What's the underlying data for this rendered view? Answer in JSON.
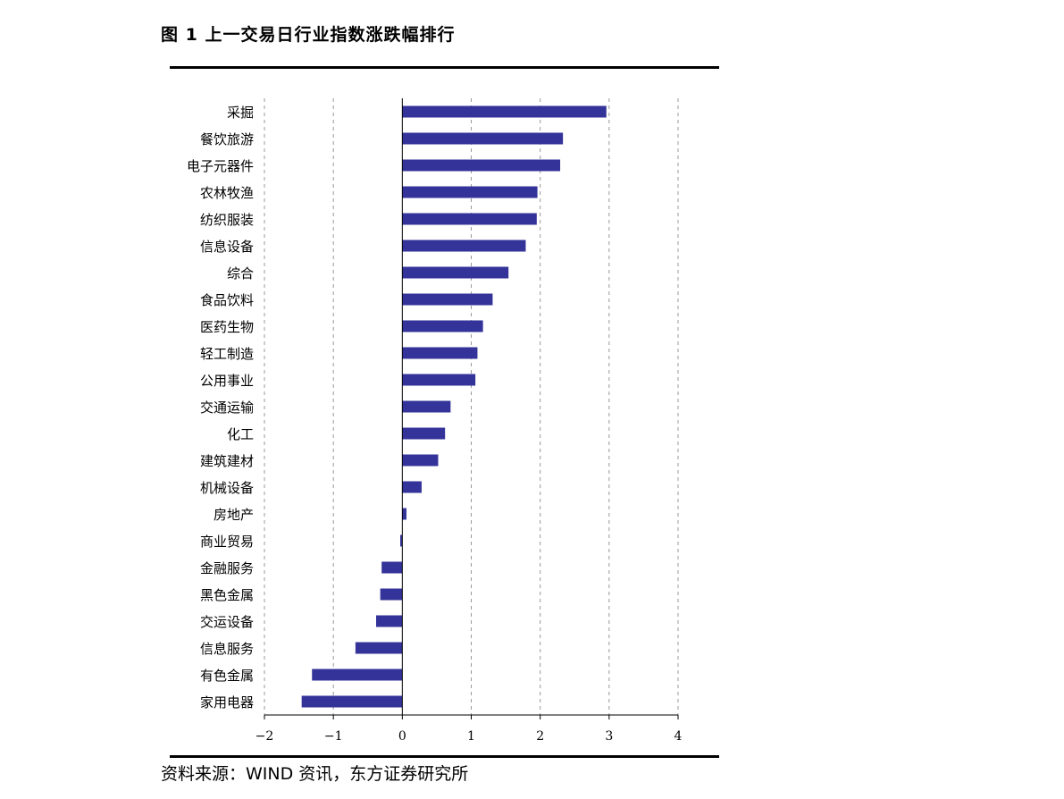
{
  "figure": {
    "title": "图 1  上一交易日行业指数涨跌幅排行",
    "source": "资料来源：WIND 资讯，东方证券研究所"
  },
  "chart_data": {
    "type": "bar",
    "orientation": "horizontal",
    "title": "",
    "xlabel": "",
    "ylabel": "",
    "xlim": [
      -2,
      4
    ],
    "xticks": [
      -2,
      -1,
      0,
      1,
      2,
      3,
      4
    ],
    "xtick_labels": [
      "−2",
      "−1",
      "0",
      "1",
      "2",
      "3",
      "4"
    ],
    "grid": "vertical dashed",
    "bar_color": "#333399",
    "categories": [
      "采掘",
      "餐饮旅游",
      "电子元器件",
      "农林牧渔",
      "纺织服装",
      "信息设备",
      "综合",
      "食品饮料",
      "医药生物",
      "轻工制造",
      "公用事业",
      "交通运输",
      "化工",
      "建筑建材",
      "机械设备",
      "房地产",
      "商业贸易",
      "金融服务",
      "黑色金属",
      "交运设备",
      "信息服务",
      "有色金属",
      "家用电器"
    ],
    "values": [
      2.96,
      2.33,
      2.29,
      1.96,
      1.95,
      1.79,
      1.54,
      1.31,
      1.17,
      1.09,
      1.06,
      0.7,
      0.62,
      0.52,
      0.28,
      0.06,
      -0.03,
      -0.3,
      -0.32,
      -0.38,
      -0.68,
      -1.31,
      -1.46
    ]
  }
}
